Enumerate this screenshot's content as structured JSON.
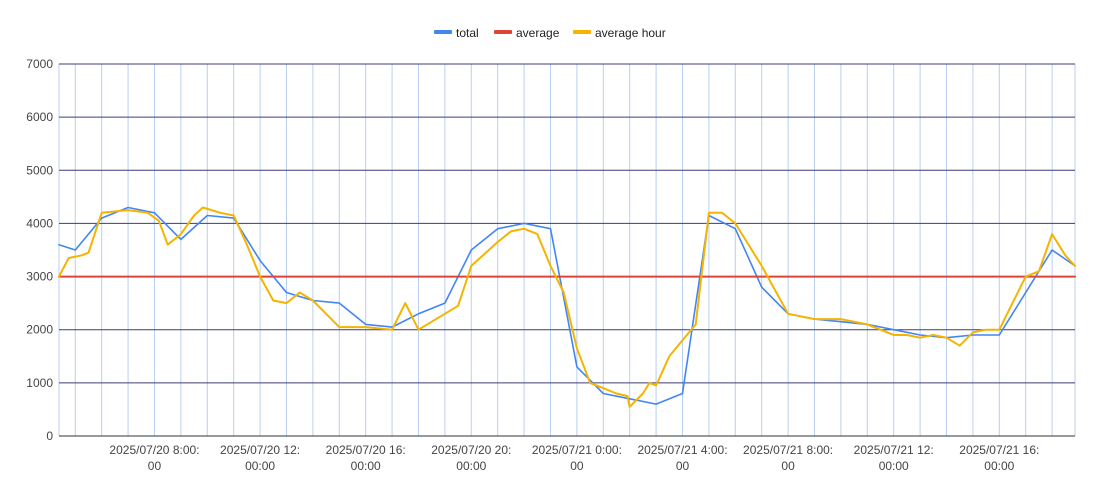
{
  "colors": {
    "background": "#ffffff",
    "grid_h": "#3c3c78",
    "grid_v": "#b8d0ee",
    "axis_text": "#444444",
    "total": "#4285f4",
    "average": "#db4437",
    "average_hour": "#f4b400"
  },
  "chart_data": {
    "type": "line",
    "title": "",
    "xlabel": "",
    "ylabel": "",
    "ylim": [
      0,
      7000
    ],
    "yticks": [
      0,
      1000,
      2000,
      3000,
      4000,
      5000,
      6000,
      7000
    ],
    "xlim": [
      "2025-07-20T04:23",
      "2025-07-21T18:52"
    ],
    "x_major_ticks": [
      {
        "t": "2025-07-20T08:00",
        "label1": "2025/07/20 8:00:",
        "label2": "00"
      },
      {
        "t": "2025-07-20T12:00",
        "label1": "2025/07/20 12:",
        "label2": "00:00"
      },
      {
        "t": "2025-07-20T16:00",
        "label1": "2025/07/20 16:",
        "label2": "00:00"
      },
      {
        "t": "2025-07-20T20:00",
        "label1": "2025/07/20 20:",
        "label2": "00:00"
      },
      {
        "t": "2025-07-21T00:00",
        "label1": "2025/07/21 0:00:",
        "label2": "00"
      },
      {
        "t": "2025-07-21T04:00",
        "label1": "2025/07/21 4:00:",
        "label2": "00"
      },
      {
        "t": "2025-07-21T08:00",
        "label1": "2025/07/21 8:00:",
        "label2": "00"
      },
      {
        "t": "2025-07-21T12:00",
        "label1": "2025/07/21 12:",
        "label2": "00:00"
      },
      {
        "t": "2025-07-21T16:00",
        "label1": "2025/07/21 16:",
        "label2": "00:00"
      }
    ],
    "grid": true,
    "legend": "top-center",
    "series": [
      {
        "name": "total",
        "color": "#4285f4",
        "x": [
          "2025-07-20T04:23",
          "2025-07-20T05:00",
          "2025-07-20T06:00",
          "2025-07-20T07:00",
          "2025-07-20T08:00",
          "2025-07-20T09:00",
          "2025-07-20T10:00",
          "2025-07-20T11:00",
          "2025-07-20T12:00",
          "2025-07-20T13:00",
          "2025-07-20T14:00",
          "2025-07-20T15:00",
          "2025-07-20T16:00",
          "2025-07-20T17:00",
          "2025-07-20T18:00",
          "2025-07-20T19:00",
          "2025-07-20T20:00",
          "2025-07-20T21:00",
          "2025-07-20T22:00",
          "2025-07-20T23:00",
          "2025-07-21T00:00",
          "2025-07-21T01:00",
          "2025-07-21T02:00",
          "2025-07-21T03:00",
          "2025-07-21T04:00",
          "2025-07-21T05:00",
          "2025-07-21T06:00",
          "2025-07-21T07:00",
          "2025-07-21T08:00",
          "2025-07-21T09:00",
          "2025-07-21T10:00",
          "2025-07-21T11:00",
          "2025-07-21T12:00",
          "2025-07-21T13:00",
          "2025-07-21T14:00",
          "2025-07-21T15:00",
          "2025-07-21T16:00",
          "2025-07-21T17:00",
          "2025-07-21T18:00",
          "2025-07-21T18:52"
        ],
        "y": [
          3600,
          3500,
          4100,
          4300,
          4200,
          3700,
          4150,
          4100,
          3300,
          2700,
          2550,
          2500,
          2100,
          2050,
          2300,
          2500,
          3500,
          3900,
          4000,
          3900,
          1300,
          800,
          700,
          600,
          800,
          4150,
          3900,
          2800,
          2300,
          2200,
          2150,
          2100,
          2000,
          1900,
          1850,
          1900,
          1900,
          2700,
          3500,
          3200
        ]
      },
      {
        "name": "average",
        "color": "#db4437",
        "x": [
          "2025-07-20T04:23",
          "2025-07-21T18:52"
        ],
        "y": [
          3000,
          3000
        ]
      },
      {
        "name": "average hour",
        "color": "#f4b400",
        "x": [
          "2025-07-20T04:23",
          "2025-07-20T04:45",
          "2025-07-20T05:15",
          "2025-07-20T05:30",
          "2025-07-20T06:00",
          "2025-07-20T07:00",
          "2025-07-20T07:45",
          "2025-07-20T08:10",
          "2025-07-20T08:30",
          "2025-07-20T09:00",
          "2025-07-20T09:30",
          "2025-07-20T09:50",
          "2025-07-20T10:30",
          "2025-07-20T11:00",
          "2025-07-20T11:30",
          "2025-07-20T12:00",
          "2025-07-20T12:30",
          "2025-07-20T13:00",
          "2025-07-20T13:30",
          "2025-07-20T14:00",
          "2025-07-20T14:30",
          "2025-07-20T15:00",
          "2025-07-20T16:00",
          "2025-07-20T17:00",
          "2025-07-20T17:30",
          "2025-07-20T18:00",
          "2025-07-20T18:30",
          "2025-07-20T19:00",
          "2025-07-20T19:30",
          "2025-07-20T20:00",
          "2025-07-20T21:00",
          "2025-07-20T21:30",
          "2025-07-20T22:00",
          "2025-07-20T22:30",
          "2025-07-20T23:00",
          "2025-07-20T23:30",
          "2025-07-21T00:00",
          "2025-07-21T00:30",
          "2025-07-21T01:00",
          "2025-07-21T01:30",
          "2025-07-21T01:55",
          "2025-07-21T02:00",
          "2025-07-21T02:30",
          "2025-07-21T02:45",
          "2025-07-21T03:00",
          "2025-07-21T03:30",
          "2025-07-21T04:00",
          "2025-07-21T04:30",
          "2025-07-21T05:00",
          "2025-07-21T05:30",
          "2025-07-21T06:00",
          "2025-07-21T07:00",
          "2025-07-21T08:00",
          "2025-07-21T09:00",
          "2025-07-21T10:00",
          "2025-07-21T11:00",
          "2025-07-21T12:00",
          "2025-07-21T12:30",
          "2025-07-21T13:00",
          "2025-07-21T13:30",
          "2025-07-21T14:00",
          "2025-07-21T14:30",
          "2025-07-21T15:00",
          "2025-07-21T15:30",
          "2025-07-21T16:00",
          "2025-07-21T16:30",
          "2025-07-21T17:00",
          "2025-07-21T17:30",
          "2025-07-21T18:00",
          "2025-07-21T18:30",
          "2025-07-21T18:52"
        ],
        "y": [
          3000,
          3350,
          3400,
          3450,
          4200,
          4250,
          4200,
          4050,
          3600,
          3800,
          4150,
          4300,
          4200,
          4150,
          3600,
          3000,
          2550,
          2500,
          2700,
          2550,
          2300,
          2050,
          2050,
          2000,
          2500,
          2000,
          2150,
          2300,
          2450,
          3200,
          3650,
          3850,
          3900,
          3800,
          3200,
          2700,
          1650,
          1000,
          900,
          800,
          750,
          550,
          800,
          1000,
          950,
          1500,
          1800,
          2100,
          4200,
          4200,
          4000,
          3200,
          2300,
          2200,
          2200,
          2100,
          1900,
          1900,
          1850,
          1900,
          1850,
          1700,
          1950,
          2000,
          2000,
          2500,
          3000,
          3100,
          3800,
          3400,
          3200
        ]
      }
    ]
  }
}
